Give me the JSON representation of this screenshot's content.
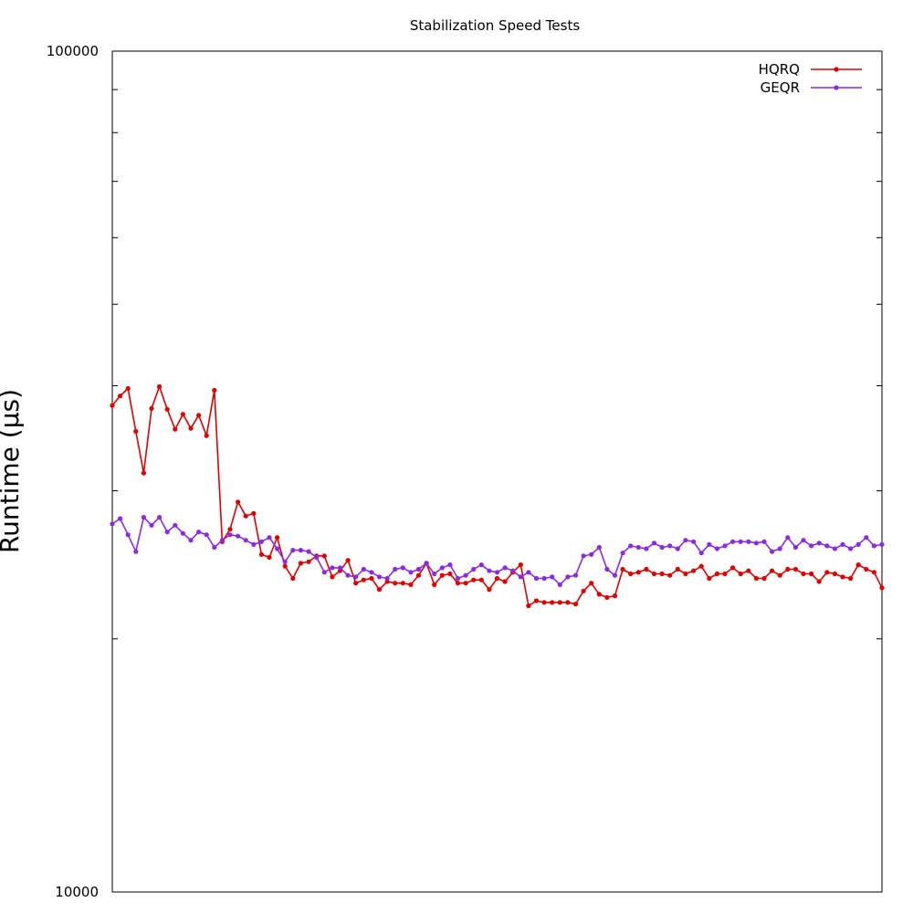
{
  "chart_data": {
    "type": "line",
    "title": "Stabilization Speed Tests",
    "xlabel": "",
    "ylabel": "Runtime (µs)",
    "y_scale": "log",
    "ylim": [
      10000,
      100000
    ],
    "y_tick_labels": [
      "100000",
      "10000"
    ],
    "xlim": [
      1,
      99
    ],
    "grid": false,
    "legend_position": "top-right",
    "x": [
      1,
      2,
      3,
      4,
      5,
      6,
      7,
      8,
      9,
      10,
      11,
      12,
      13,
      14,
      15,
      16,
      17,
      18,
      19,
      20,
      21,
      22,
      23,
      24,
      25,
      26,
      27,
      28,
      29,
      30,
      31,
      32,
      33,
      34,
      35,
      36,
      37,
      38,
      39,
      40,
      41,
      42,
      43,
      44,
      45,
      46,
      47,
      48,
      49,
      50,
      51,
      52,
      53,
      54,
      55,
      56,
      57,
      58,
      59,
      60,
      61,
      62,
      63,
      64,
      65,
      66,
      67,
      68,
      69,
      70,
      71,
      72,
      73,
      74,
      75,
      76,
      77,
      78,
      79,
      80,
      81,
      82,
      83,
      84,
      85,
      86,
      87,
      88,
      89,
      90,
      91,
      92,
      93,
      94,
      95,
      96,
      97,
      98,
      99
    ],
    "series": [
      {
        "name": "HQRQ",
        "color": "#e00000",
        "values": [
          37900,
          38900,
          39700,
          35300,
          31500,
          37600,
          39900,
          37500,
          35500,
          37000,
          35600,
          36900,
          34900,
          39500,
          26100,
          27000,
          29100,
          28000,
          28200,
          25200,
          25000,
          26400,
          24400,
          23600,
          24600,
          24700,
          25100,
          25100,
          23700,
          24100,
          24800,
          23300,
          23500,
          23600,
          22900,
          23400,
          23300,
          23300,
          23200,
          23800,
          24600,
          23200,
          23800,
          23900,
          23300,
          23300,
          23500,
          23500,
          22900,
          23600,
          23400,
          24000,
          24500,
          21900,
          22200,
          22100,
          22100,
          22100,
          22100,
          22000,
          22800,
          23300,
          22600,
          22400,
          22500,
          24200,
          23900,
          24000,
          24200,
          23900,
          23900,
          23800,
          24200,
          23900,
          24100,
          24400,
          23600,
          23900,
          23900,
          24300,
          23900,
          24100,
          23600,
          23600,
          24100,
          23800,
          24200,
          24200,
          23900,
          23900,
          23400,
          24000,
          23900,
          23700,
          23600,
          24500,
          24200,
          24000,
          23000
        ]
      },
      {
        "name": "GEQR",
        "color": "#8a2be2",
        "values": [
          27400,
          27800,
          26600,
          25400,
          27900,
          27300,
          27900,
          26800,
          27300,
          26700,
          26200,
          26800,
          26600,
          25700,
          26200,
          26600,
          26500,
          26200,
          25900,
          26100,
          26400,
          25600,
          24700,
          25500,
          25500,
          25400,
          25000,
          24000,
          24300,
          24300,
          23800,
          23700,
          24200,
          24000,
          23700,
          23600,
          24200,
          24300,
          24000,
          24200,
          24600,
          23900,
          24300,
          24500,
          23600,
          23800,
          24200,
          24500,
          24100,
          24000,
          24300,
          24100,
          23700,
          24000,
          23600,
          23600,
          23700,
          23200,
          23700,
          23800,
          25100,
          25200,
          25700,
          24200,
          23800,
          25300,
          25800,
          25700,
          25600,
          26000,
          25700,
          25800,
          25600,
          26200,
          26100,
          25300,
          25900,
          25600,
          25800,
          26100,
          26100,
          26100,
          26000,
          26100,
          25400,
          25600,
          26400,
          25700,
          26200,
          25800,
          26000,
          25800,
          25600,
          25900,
          25600,
          25900,
          26400,
          25800,
          25900
        ]
      }
    ]
  }
}
